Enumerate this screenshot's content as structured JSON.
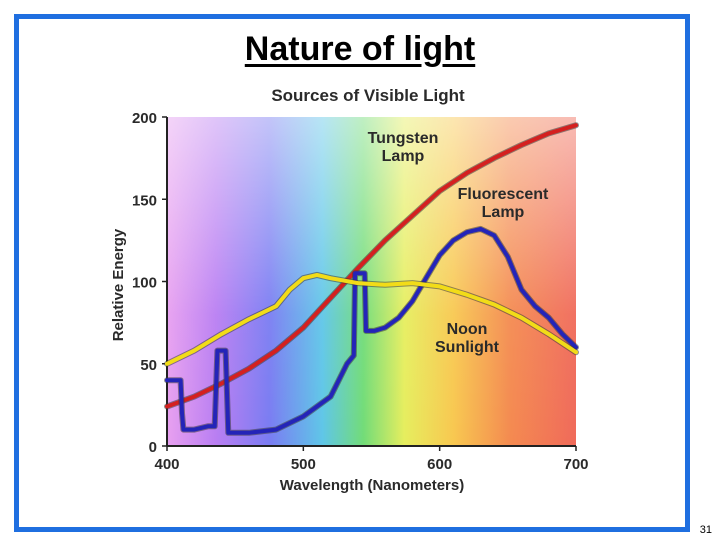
{
  "slide": {
    "title": "Nature of light",
    "number": "31",
    "frame_color": "#1f6fe0"
  },
  "chart_data": {
    "type": "line",
    "title": "Sources of Visible Light",
    "xlabel": "Wavelength (Nanometers)",
    "ylabel": "Relative Energy",
    "xlim": [
      400,
      700
    ],
    "ylim": [
      0,
      200
    ],
    "x_ticks": [
      400,
      500,
      600,
      700
    ],
    "y_ticks": [
      0,
      50,
      100,
      150,
      200
    ],
    "background": "visible spectrum gradient (violet to red)",
    "grid": false,
    "legend": "labels placed directly next to curves",
    "series": [
      {
        "name": "Tungsten Lamp",
        "label_lines": [
          "Tungsten",
          "Lamp"
        ],
        "color": "#d42020",
        "x": [
          400,
          420,
          440,
          460,
          480,
          500,
          520,
          540,
          560,
          580,
          600,
          620,
          640,
          660,
          680,
          700
        ],
        "y": [
          24,
          30,
          38,
          47,
          58,
          72,
          90,
          108,
          125,
          140,
          155,
          166,
          175,
          183,
          190,
          195
        ]
      },
      {
        "name": "Fluorescent Lamp",
        "label_lines": [
          "Fluorescent",
          "Lamp"
        ],
        "color": "#2424b8",
        "x": [
          400,
          410,
          411,
          412,
          420,
          430,
          435,
          437,
          440,
          443,
          445,
          460,
          480,
          500,
          520,
          532,
          537,
          538,
          542,
          543,
          545,
          546,
          552,
          560,
          570,
          580,
          590,
          600,
          610,
          620,
          630,
          640,
          650,
          660,
          670,
          680,
          690,
          700
        ],
        "y": [
          40,
          40,
          20,
          10,
          10,
          12,
          12,
          58,
          58,
          58,
          8,
          8,
          10,
          18,
          30,
          50,
          55,
          105,
          105,
          105,
          105,
          70,
          70,
          72,
          78,
          88,
          102,
          116,
          125,
          130,
          132,
          128,
          115,
          95,
          85,
          78,
          68,
          60
        ]
      },
      {
        "name": "Noon Sunlight",
        "label_lines": [
          "Noon",
          "Sunlight"
        ],
        "color": "#f2dc18",
        "x": [
          400,
          420,
          440,
          460,
          480,
          490,
          500,
          510,
          520,
          540,
          560,
          580,
          600,
          620,
          640,
          660,
          680,
          700
        ],
        "y": [
          50,
          58,
          68,
          77,
          85,
          95,
          102,
          104,
          102,
          99,
          98,
          99,
          97,
          92,
          86,
          78,
          68,
          57
        ]
      }
    ]
  }
}
